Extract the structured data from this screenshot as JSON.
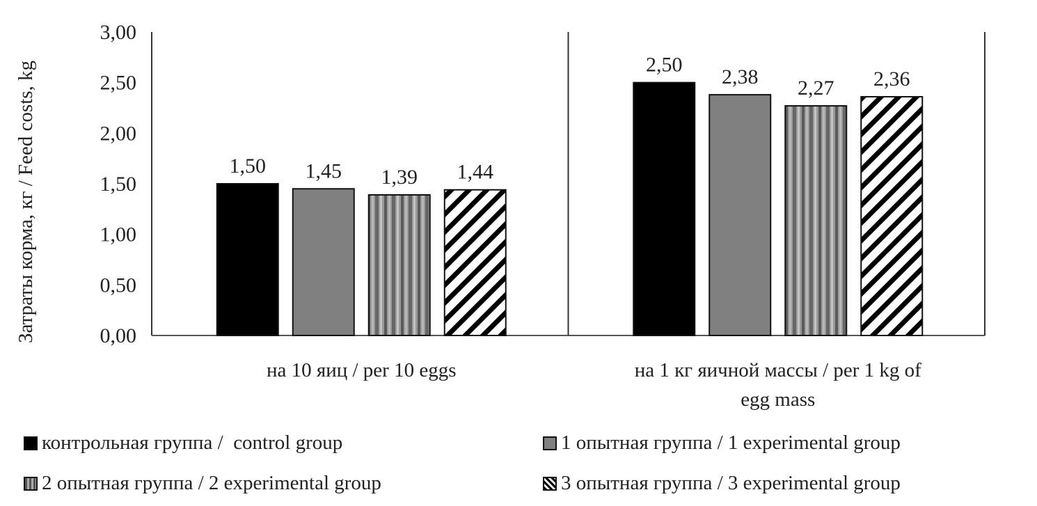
{
  "chart_data": {
    "type": "bar",
    "title": "",
    "xlabel": "",
    "ylabel": "Затраты корма, кг / Feed costs, kg",
    "ylim": [
      0,
      3
    ],
    "yticks": [
      "0,00",
      "0,50",
      "1,00",
      "1,50",
      "2,00",
      "2,50",
      "3,00"
    ],
    "ytick_values": [
      0,
      0.5,
      1,
      1.5,
      2,
      2.5,
      3
    ],
    "grid": false,
    "categories": [
      [
        "на 10 яиц / per 10 eggs"
      ],
      [
        "на 1 кг яичной массы / per 1 kg of",
        "egg mass"
      ]
    ],
    "series": [
      {
        "name": "контрольная группа /  control group",
        "pattern": "solid-black",
        "values": [
          1.5,
          2.5
        ],
        "labels": [
          "1,50",
          "2,50"
        ]
      },
      {
        "name": "1 опытная группа / 1 experimental group",
        "pattern": "solid-gray",
        "values": [
          1.45,
          2.38
        ],
        "labels": [
          "1,45",
          "2,38"
        ]
      },
      {
        "name": "2 опытная группа / 2 experimental group",
        "pattern": "vertical-stripes",
        "values": [
          1.39,
          2.27
        ],
        "labels": [
          "1,39",
          "2,27"
        ]
      },
      {
        "name": "3 опытная группа / 3 experimental group",
        "pattern": "diagonal-hatch",
        "values": [
          1.44,
          2.36
        ],
        "labels": [
          "1,44",
          "2,36"
        ]
      }
    ],
    "legend_position": "bottom",
    "colors": {
      "black": "#000000",
      "gray": "#808080",
      "axis": "#555555"
    }
  }
}
